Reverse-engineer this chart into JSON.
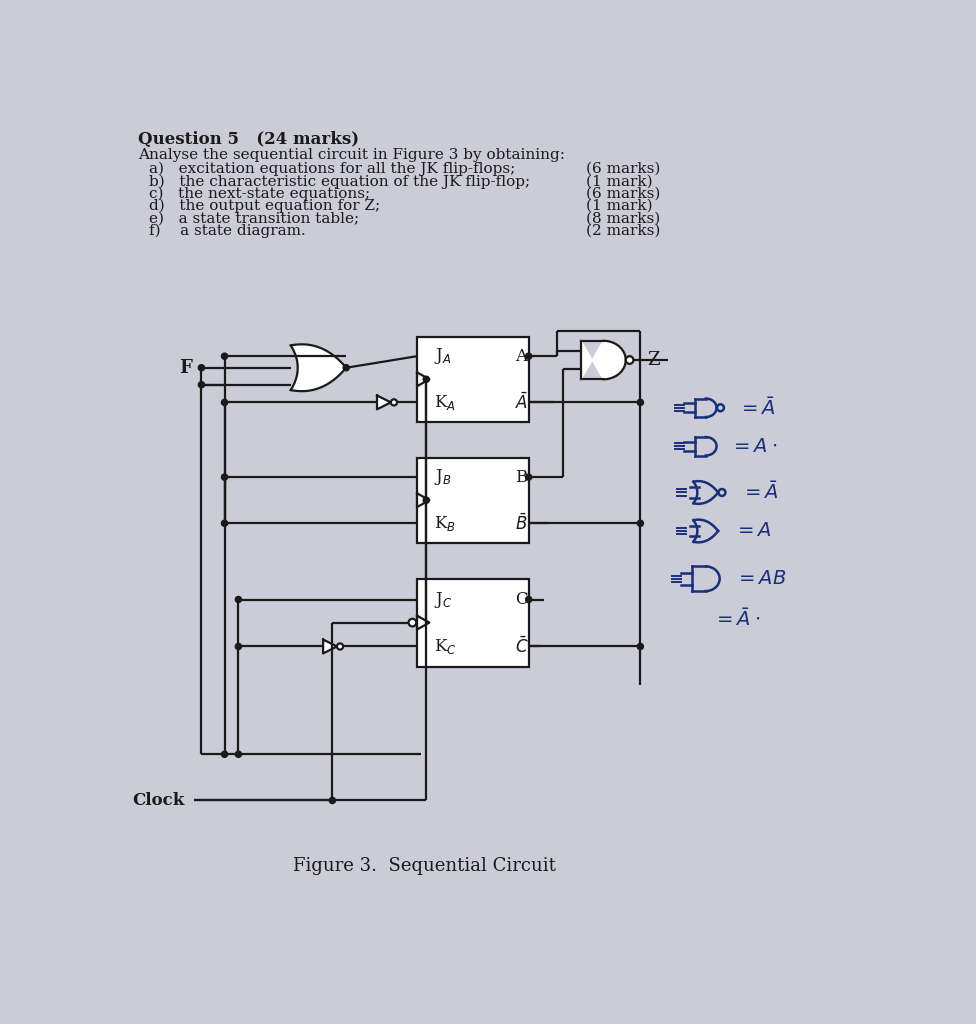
{
  "bg_color": "#ccccd8",
  "text_color": "#1a1a1a",
  "blue_color": "#1a2f7a",
  "title": "Question 5   (24 marks)",
  "subtitle": "Analyse the sequential circuit in Figure 3 by obtaining:",
  "items_left": [
    "a)   excitation equations for all the JK flip-flops;",
    "b)   the characteristic equation of the JK flip-flop;",
    "c)   the next-state equations;",
    "d)   the output equation for Z;",
    "e)   a state transition table;",
    "f)    a state diagram."
  ],
  "items_right": [
    "(6 marks)",
    "(1 mark)",
    "(6 marks)",
    "(1 mark)",
    "(8 marks)",
    "(2 marks)"
  ],
  "caption": "Figure 3.  Sequential Circuit",
  "clock_label": "Clock"
}
